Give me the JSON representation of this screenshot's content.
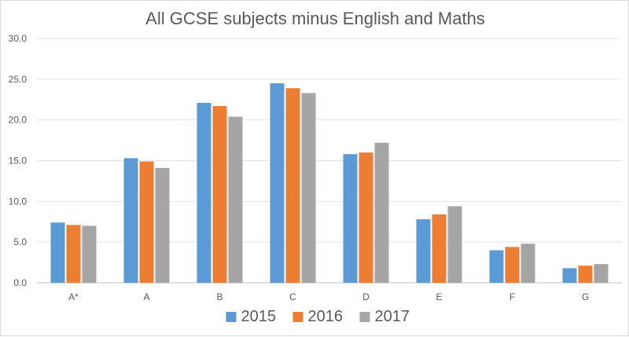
{
  "chart_data": {
    "type": "bar",
    "title": "All GCSE subjects minus English and Maths",
    "categories": [
      "A*",
      "A",
      "B",
      "C",
      "D",
      "E",
      "F",
      "G"
    ],
    "series": [
      {
        "name": "2015",
        "color": "#5b9bd5",
        "values": [
          7.4,
          15.3,
          22.1,
          24.5,
          15.8,
          7.8,
          4.0,
          1.8
        ]
      },
      {
        "name": "2016",
        "color": "#ed7d31",
        "values": [
          7.1,
          14.9,
          21.7,
          23.9,
          16.0,
          8.4,
          4.4,
          2.1
        ]
      },
      {
        "name": "2017",
        "color": "#a5a5a5",
        "values": [
          7.0,
          14.1,
          20.4,
          23.3,
          17.2,
          9.4,
          4.8,
          2.3
        ]
      }
    ],
    "ylim": [
      0,
      30
    ],
    "yticks": [
      "0.0",
      "5.0",
      "10.0",
      "15.0",
      "20.0",
      "25.0",
      "30.0"
    ],
    "grid": true,
    "legend_position": "bottom"
  }
}
